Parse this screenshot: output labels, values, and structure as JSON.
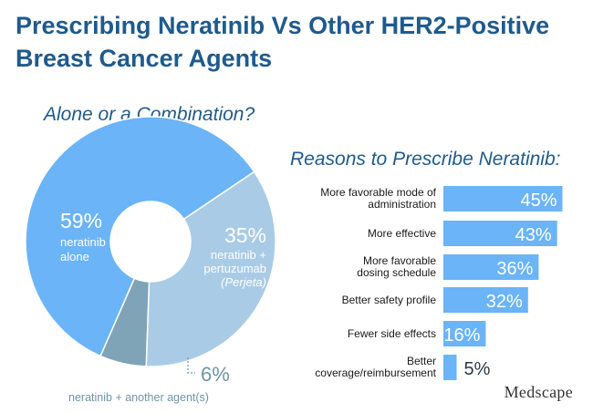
{
  "title": "Prescribing Neratinib Vs Other HER2-Positive Breast Cancer Agents",
  "logo": "Medscape",
  "colors": {
    "title": "#1f5a8c",
    "alone": "#6ab4f7",
    "pertuzumab": "#a9cbe6",
    "another": "#7fa3b7",
    "bar": "#6ab4f7",
    "label_text": "#ffffff",
    "another_text": "#6f94aa"
  },
  "chart_data": [
    {
      "type": "pie",
      "title": "Alone or a Combination?",
      "donut": true,
      "slices": [
        {
          "pct_label": "59%",
          "value": 59,
          "label": [
            "neratinib",
            "alone"
          ]
        },
        {
          "pct_label": "35%",
          "value": 35,
          "label": [
            "neratinib +",
            "pertuzumab"
          ],
          "note": "(Perjeta)"
        },
        {
          "pct_label": "6%",
          "value": 6,
          "label": [
            "neratinib + another agent(s)"
          ]
        }
      ]
    },
    {
      "type": "bar",
      "orientation": "horizontal",
      "title": "Reasons to Prescribe Neratinib:",
      "categories": [
        [
          "More favorable mode of",
          "administration"
        ],
        [
          "More effective"
        ],
        [
          "More favorable",
          "dosing schedule"
        ],
        [
          "Better safety profile"
        ],
        [
          "Fewer side effects"
        ],
        [
          "Better",
          "coverage/reimbursement"
        ]
      ],
      "values": [
        45,
        43,
        36,
        32,
        16,
        5
      ],
      "value_labels": [
        "45%",
        "43%",
        "36%",
        "32%",
        "16%",
        "5%"
      ]
    }
  ]
}
